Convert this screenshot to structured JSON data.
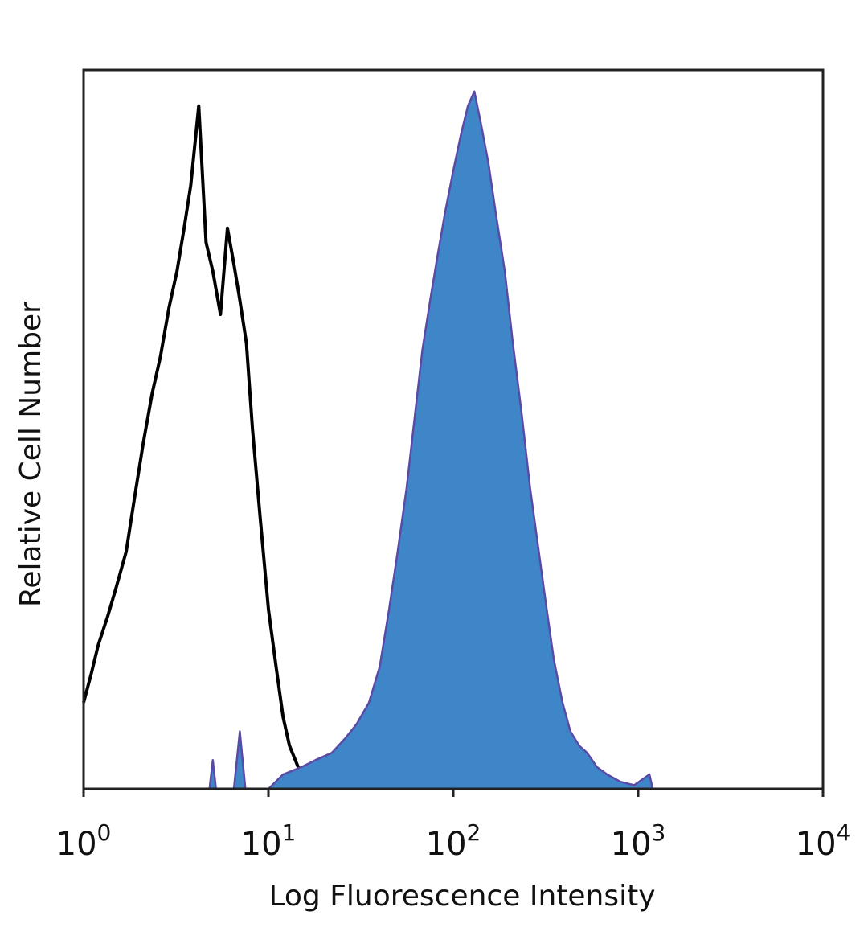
{
  "chart_data": {
    "type": "area",
    "title": "",
    "xlabel": "Log Fluorescence Intensity",
    "ylabel": "Relative Cell Number",
    "x_scale": "log",
    "xlim": [
      1,
      10000
    ],
    "ylim": [
      0,
      1
    ],
    "x_ticks": [
      {
        "value": 1,
        "base": "10",
        "exp": "0"
      },
      {
        "value": 10,
        "base": "10",
        "exp": "1"
      },
      {
        "value": 100,
        "base": "10",
        "exp": "2"
      },
      {
        "value": 1000,
        "base": "10",
        "exp": "3"
      },
      {
        "value": 10000,
        "base": "10",
        "exp": "4"
      }
    ],
    "grid": false,
    "legend": "none",
    "series": [
      {
        "style": "outline",
        "color": "#000000",
        "points": [
          [
            1.0,
            0.12
          ],
          [
            1.1,
            0.16
          ],
          [
            1.2,
            0.2
          ],
          [
            1.35,
            0.24
          ],
          [
            1.5,
            0.28
          ],
          [
            1.7,
            0.33
          ],
          [
            1.9,
            0.41
          ],
          [
            2.1,
            0.48
          ],
          [
            2.35,
            0.55
          ],
          [
            2.6,
            0.6
          ],
          [
            2.9,
            0.67
          ],
          [
            3.2,
            0.72
          ],
          [
            3.5,
            0.78
          ],
          [
            3.8,
            0.84
          ],
          [
            4.2,
            0.95
          ],
          [
            4.6,
            0.76
          ],
          [
            5.0,
            0.72
          ],
          [
            5.5,
            0.66
          ],
          [
            6.0,
            0.78
          ],
          [
            6.5,
            0.73
          ],
          [
            7.0,
            0.68
          ],
          [
            7.6,
            0.62
          ],
          [
            8.2,
            0.5
          ],
          [
            9.0,
            0.38
          ],
          [
            10.0,
            0.25
          ],
          [
            11.0,
            0.17
          ],
          [
            12.0,
            0.1
          ],
          [
            13.0,
            0.06
          ],
          [
            14.5,
            0.03
          ],
          [
            16.0,
            0.01
          ],
          [
            17.5,
            0.0
          ]
        ]
      },
      {
        "style": "filled",
        "color": "#3f86c8",
        "edge_color": "#5a4aa6",
        "points": [
          [
            4.8,
            0.0
          ],
          [
            5.0,
            0.04
          ],
          [
            5.2,
            0.0
          ],
          [
            6.5,
            0.0
          ],
          [
            7.0,
            0.08
          ],
          [
            7.5,
            0.0
          ],
          [
            10.0,
            0.0
          ],
          [
            12.0,
            0.02
          ],
          [
            15.0,
            0.03
          ],
          [
            18.0,
            0.04
          ],
          [
            22.0,
            0.05
          ],
          [
            26.0,
            0.07
          ],
          [
            30.0,
            0.09
          ],
          [
            35.0,
            0.12
          ],
          [
            40.0,
            0.17
          ],
          [
            45.0,
            0.25
          ],
          [
            50.0,
            0.33
          ],
          [
            56.0,
            0.42
          ],
          [
            62.0,
            0.52
          ],
          [
            68.0,
            0.61
          ],
          [
            75.0,
            0.68
          ],
          [
            82.0,
            0.74
          ],
          [
            90.0,
            0.8
          ],
          [
            100.0,
            0.86
          ],
          [
            110.0,
            0.91
          ],
          [
            120.0,
            0.95
          ],
          [
            130.0,
            0.97
          ],
          [
            140.0,
            0.93
          ],
          [
            155.0,
            0.87
          ],
          [
            170.0,
            0.8
          ],
          [
            190.0,
            0.72
          ],
          [
            210.0,
            0.62
          ],
          [
            235.0,
            0.52
          ],
          [
            260.0,
            0.42
          ],
          [
            290.0,
            0.33
          ],
          [
            320.0,
            0.25
          ],
          [
            350.0,
            0.18
          ],
          [
            390.0,
            0.12
          ],
          [
            430.0,
            0.08
          ],
          [
            480.0,
            0.06
          ],
          [
            530.0,
            0.05
          ],
          [
            600.0,
            0.03
          ],
          [
            680.0,
            0.02
          ],
          [
            800.0,
            0.01
          ],
          [
            950.0,
            0.005
          ],
          [
            1150.0,
            0.02
          ],
          [
            1200.0,
            0.0
          ]
        ]
      }
    ]
  }
}
